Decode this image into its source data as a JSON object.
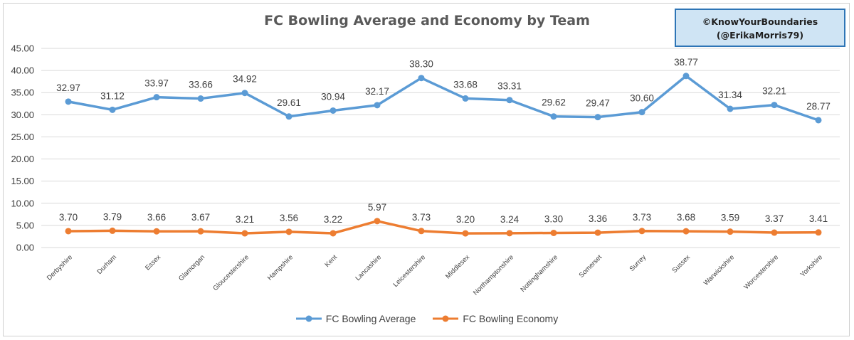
{
  "watermark": {
    "line1": "©KnowYourBoundaries",
    "line2": "(@ErikaMorris79)"
  },
  "colors": {
    "average": "#5b9bd5",
    "economy": "#ed7d31",
    "grid": "#d9d9d9",
    "axis_text": "#404040"
  },
  "chart_data": {
    "type": "line",
    "title": "FC Bowling Average and Economy by Team",
    "xlabel": "",
    "ylabel": "",
    "ylim": [
      0,
      45
    ],
    "y_ticks": [
      "0.00",
      "5.00",
      "10.00",
      "15.00",
      "20.00",
      "25.00",
      "30.00",
      "35.00",
      "40.00",
      "45.00"
    ],
    "grid": true,
    "legend_position": "bottom",
    "categories": [
      "Derbyshire",
      "Durham",
      "Essex",
      "Glamorgan",
      "Gloucestershire",
      "Hampshire",
      "Kent",
      "Lancashire",
      "Leicestershire",
      "Middlesex",
      "Northamptonshire",
      "Nottinghamshire",
      "Somerset",
      "Surrey",
      "Sussex",
      "Warwickshire",
      "Worcestershire",
      "Yorkshire"
    ],
    "series": [
      {
        "name": "FC Bowling Average",
        "values": [
          32.97,
          31.12,
          33.97,
          33.66,
          34.92,
          29.61,
          30.94,
          32.17,
          38.3,
          33.68,
          33.31,
          29.62,
          29.47,
          30.6,
          38.77,
          31.34,
          32.21,
          28.77
        ],
        "labels": [
          "32.97",
          "31.12",
          "33.97",
          "33.66",
          "34.92",
          "29.61",
          "30.94",
          "32.17",
          "38.30",
          "33.68",
          "33.31",
          "29.62",
          "29.47",
          "30.60",
          "38.77",
          "31.34",
          "32.21",
          "28.77"
        ]
      },
      {
        "name": "FC Bowling Economy",
        "values": [
          3.7,
          3.79,
          3.66,
          3.67,
          3.21,
          3.56,
          3.22,
          5.97,
          3.73,
          3.2,
          3.24,
          3.3,
          3.36,
          3.73,
          3.68,
          3.59,
          3.37,
          3.41
        ],
        "labels": [
          "3.70",
          "3.79",
          "3.66",
          "3.67",
          "3.21",
          "3.56",
          "3.22",
          "5.97",
          "3.73",
          "3.20",
          "3.24",
          "3.30",
          "3.36",
          "3.73",
          "3.68",
          "3.59",
          "3.37",
          "3.41"
        ]
      }
    ]
  }
}
